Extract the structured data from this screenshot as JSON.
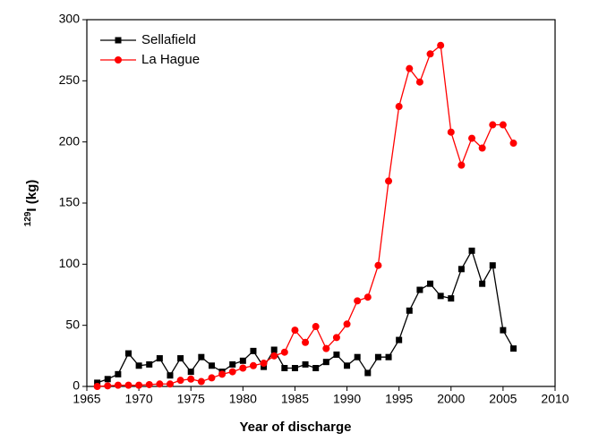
{
  "chart_data": {
    "type": "line",
    "xlabel": "Year of discharge",
    "ylabel": {
      "sup": "129",
      "text": "I (kg)"
    },
    "x": [
      1966,
      1967,
      1968,
      1969,
      1970,
      1971,
      1972,
      1973,
      1974,
      1975,
      1976,
      1977,
      1978,
      1979,
      1980,
      1981,
      1982,
      1983,
      1984,
      1985,
      1986,
      1987,
      1988,
      1989,
      1990,
      1991,
      1992,
      1993,
      1994,
      1995,
      1996,
      1997,
      1998,
      1999,
      2000,
      2001,
      2002,
      2003,
      2004,
      2005,
      2006
    ],
    "series": [
      {
        "name": "Sellafield",
        "color": "#000000",
        "marker": "square",
        "values": [
          3,
          6,
          10,
          27,
          17,
          18,
          23,
          9,
          23,
          12,
          24,
          17,
          12,
          18,
          21,
          29,
          16,
          30,
          15,
          15,
          18,
          15,
          20,
          26,
          17,
          24,
          11,
          24,
          24,
          38,
          62,
          79,
          84,
          74,
          72,
          96,
          111,
          84,
          99,
          46,
          31
        ]
      },
      {
        "name": "La Hague",
        "color": "#ff0000",
        "marker": "circle",
        "values": [
          0,
          0.5,
          1,
          1,
          1,
          1.5,
          2,
          2,
          5,
          6,
          4,
          7,
          10,
          12,
          15,
          17,
          19,
          25,
          28,
          46,
          36,
          49,
          31,
          40,
          51,
          70,
          73,
          99,
          168,
          229,
          260,
          249,
          272,
          279,
          208,
          181,
          203,
          195,
          214,
          214,
          199
        ]
      }
    ],
    "xlim": [
      1965,
      2010
    ],
    "xticks": [
      1965,
      1970,
      1975,
      1980,
      1985,
      1990,
      1995,
      2000,
      2005,
      2010
    ],
    "ylim": [
      0,
      300
    ],
    "yticks": [
      0,
      50,
      100,
      150,
      200,
      250,
      300
    ],
    "legend": "upper-left",
    "grid": false
  }
}
